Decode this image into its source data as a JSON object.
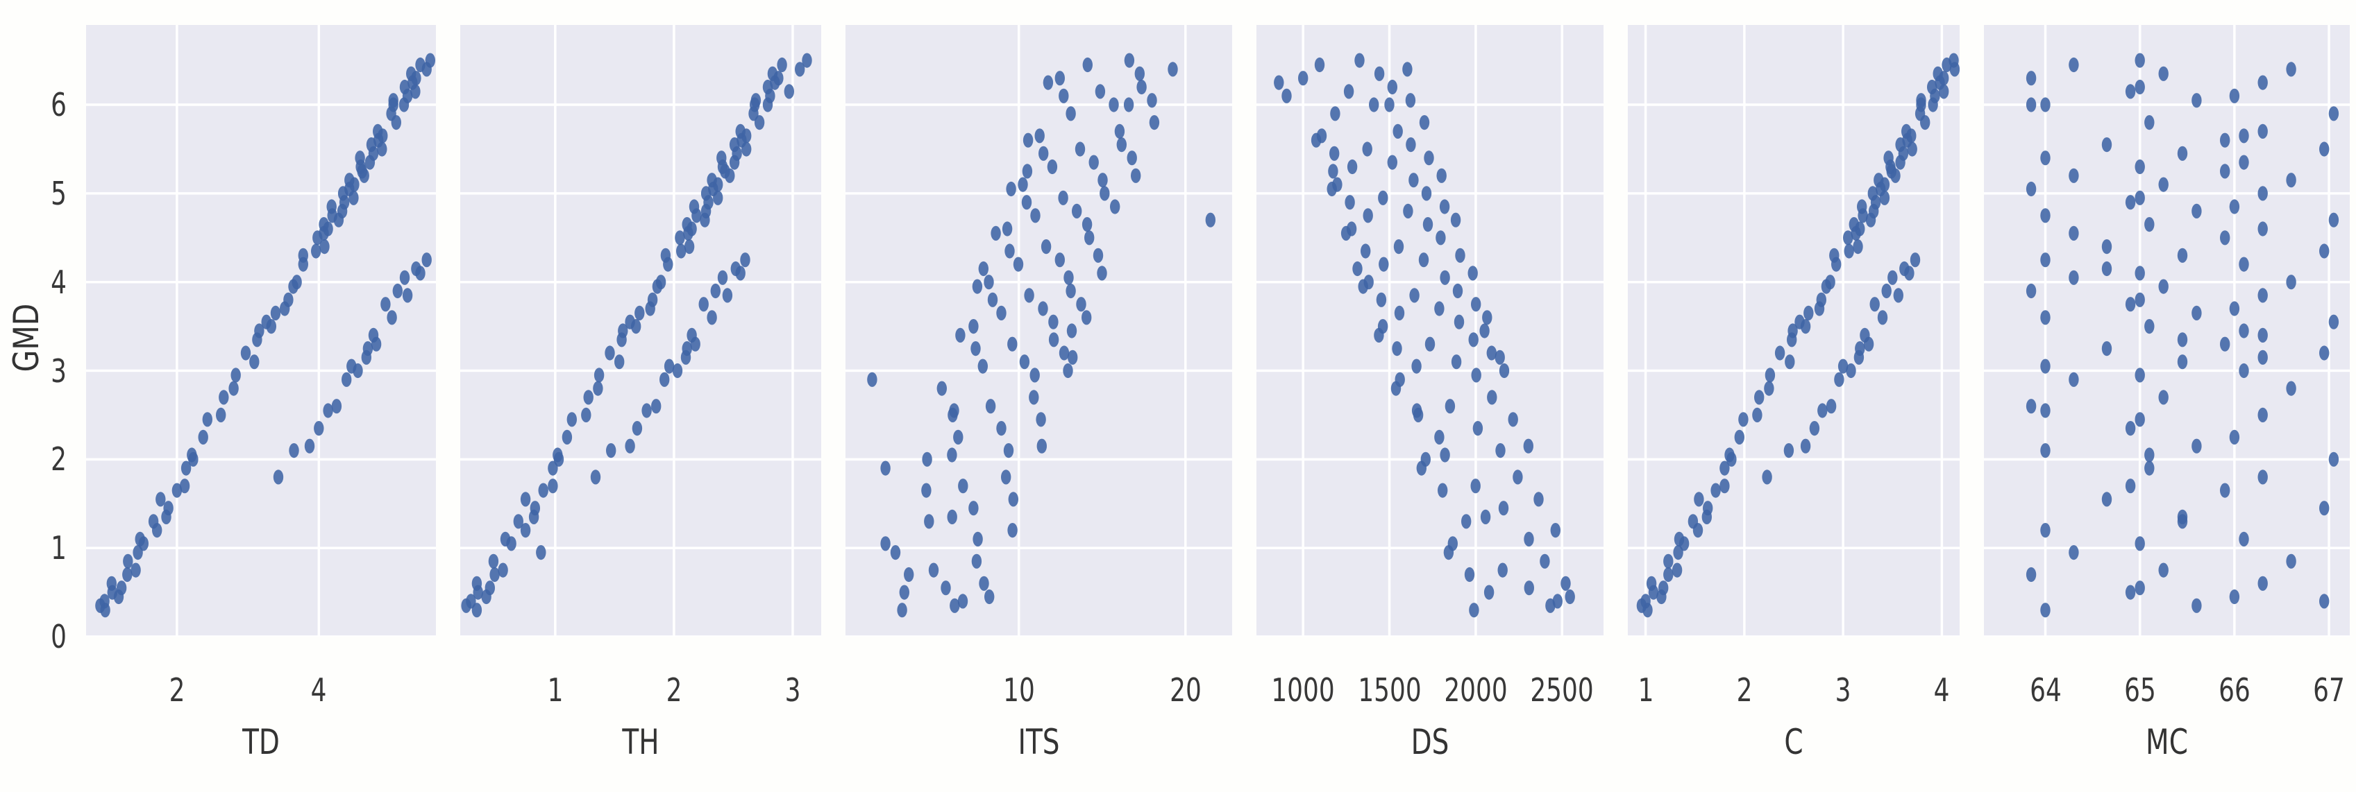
{
  "figure": {
    "background": "#fefefc",
    "panel_background": "#e9e9f2",
    "grid_color": "#ffffff",
    "dot_color": "#3f64a5",
    "text_color": "#383838"
  },
  "chart_data": {
    "type": "scatter",
    "title": "",
    "layout": "1 row x 6 panels, shared y-axis, seaborn darkgrid, no legend",
    "ylabel": "GMD",
    "y_ticks": [
      0,
      1,
      2,
      3,
      4,
      5,
      6
    ],
    "ylim": [
      0,
      6.9
    ],
    "gmd": [
      0.3,
      0.35,
      0.45,
      0.5,
      0.55,
      0.6,
      0.7,
      0.75,
      0.85,
      0.95,
      1.05,
      1.1,
      1.2,
      1.3,
      1.45,
      1.55,
      1.65,
      1.7,
      1.8,
      1.9,
      2.0,
      2.1,
      2.15,
      2.25,
      2.35,
      2.45,
      2.5,
      2.6,
      2.7,
      2.8,
      2.9,
      2.95,
      3.0,
      3.05,
      3.1,
      3.2,
      3.25,
      3.3,
      3.35,
      3.4,
      3.5,
      3.55,
      3.6,
      3.65,
      3.7,
      3.75,
      3.8,
      3.85,
      3.9,
      3.95,
      4.0,
      4.05,
      4.1,
      4.2,
      4.25,
      4.3,
      4.35,
      4.4,
      4.5,
      4.55,
      4.6,
      4.65,
      4.7,
      4.75,
      4.8,
      4.85,
      4.9,
      4.95,
      5.0,
      5.05,
      5.1,
      5.15,
      5.2,
      5.3,
      5.35,
      5.4,
      5.45,
      5.5,
      5.55,
      5.6,
      5.65,
      5.7,
      5.8,
      5.9,
      6.0,
      6.05,
      6.1,
      6.15,
      6.2,
      6.25,
      6.3,
      6.35,
      6.4,
      6.45,
      6.5,
      3.45,
      2.55,
      1.35,
      0.4,
      4.15,
      5.25,
      6.0,
      3.15,
      2.05
    ],
    "panels": [
      {
        "xlabel": "TD",
        "x_ticks": [
          2,
          4
        ],
        "xlim": [
          0.72,
          5.65
        ],
        "x": [
          0.99,
          0.92,
          1.18,
          1.09,
          1.22,
          1.08,
          1.3,
          1.42,
          1.31,
          1.45,
          1.53,
          1.48,
          1.72,
          1.67,
          1.88,
          1.77,
          2.0,
          2.11,
          3.43,
          2.13,
          2.23,
          3.65,
          3.87,
          2.37,
          4.0,
          2.43,
          2.62,
          4.25,
          2.66,
          2.8,
          4.39,
          2.83,
          4.55,
          4.46,
          3.09,
          2.97,
          4.69,
          4.81,
          3.13,
          4.77,
          3.33,
          3.26,
          5.03,
          3.39,
          3.52,
          4.94,
          3.57,
          5.25,
          5.11,
          3.64,
          3.69,
          5.21,
          5.43,
          3.78,
          5.52,
          3.78,
          3.96,
          4.08,
          3.98,
          4.07,
          4.13,
          4.07,
          4.28,
          4.19,
          4.33,
          4.18,
          4.36,
          4.49,
          4.34,
          4.43,
          4.5,
          4.43,
          4.64,
          4.59,
          4.72,
          4.58,
          4.77,
          4.89,
          4.74,
          4.84,
          4.9,
          4.83,
          5.09,
          5.02,
          5.2,
          5.05,
          5.25,
          5.36,
          5.21,
          5.32,
          5.37,
          5.3,
          5.52,
          5.43,
          5.57,
          3.16,
          4.13,
          1.85,
          0.98,
          5.37,
          4.61,
          5.05,
          4.67,
          2.21
        ]
      },
      {
        "xlabel": "TH",
        "x_ticks": [
          1,
          2,
          3
        ],
        "xlim": [
          0.2,
          3.24
        ],
        "x": [
          0.34,
          0.25,
          0.42,
          0.35,
          0.45,
          0.34,
          0.49,
          0.56,
          0.48,
          0.88,
          0.63,
          0.58,
          0.75,
          0.69,
          0.83,
          0.75,
          0.9,
          0.98,
          1.34,
          0.98,
          1.03,
          1.47,
          1.63,
          1.1,
          1.69,
          1.14,
          1.26,
          1.85,
          1.28,
          1.36,
          1.92,
          1.37,
          2.03,
          1.96,
          1.54,
          1.46,
          2.11,
          2.18,
          1.56,
          2.15,
          1.68,
          1.63,
          2.32,
          1.71,
          1.8,
          2.25,
          1.82,
          2.45,
          2.35,
          1.86,
          1.89,
          2.41,
          2.56,
          1.95,
          2.6,
          1.93,
          2.06,
          2.13,
          2.05,
          2.12,
          2.15,
          2.11,
          2.26,
          2.19,
          2.27,
          2.17,
          2.29,
          2.37,
          2.27,
          2.33,
          2.37,
          2.32,
          2.47,
          2.41,
          2.51,
          2.4,
          2.53,
          2.61,
          2.51,
          2.57,
          2.61,
          2.56,
          2.72,
          2.67,
          2.79,
          2.69,
          2.81,
          2.97,
          2.79,
          2.85,
          2.88,
          2.83,
          3.06,
          2.91,
          3.12,
          1.57,
          1.77,
          0.82,
          0.29,
          2.52,
          2.43,
          2.68,
          2.1,
          1.02
        ]
      },
      {
        "xlabel": "ITS",
        "x_ticks": [
          10,
          20
        ],
        "xlim": [
          -0.4,
          22.8
        ],
        "x": [
          3.0,
          6.15,
          8.23,
          3.13,
          5.62,
          7.91,
          3.4,
          4.89,
          7.47,
          2.6,
          2.0,
          7.54,
          9.62,
          4.61,
          7.28,
          9.67,
          4.45,
          6.65,
          9.23,
          2.0,
          4.5,
          9.39,
          11.38,
          6.36,
          8.95,
          11.33,
          6.03,
          8.31,
          10.9,
          5.38,
          1.2,
          10.96,
          12.95,
          7.84,
          10.34,
          12.72,
          7.41,
          9.61,
          12.1,
          6.49,
          7.28,
          12.07,
          14.06,
          8.95,
          11.45,
          13.74,
          8.43,
          10.62,
          13.12,
          7.51,
          8.2,
          12.99,
          14.99,
          9.97,
          12.46,
          14.76,
          9.45,
          11.64,
          14.23,
          8.62,
          9.31,
          14.1,
          21.5,
          10.99,
          13.48,
          15.77,
          10.47,
          12.66,
          15.15,
          9.54,
          10.24,
          15.03,
          17.02,
          12.01,
          14.5,
          16.79,
          11.48,
          13.68,
          16.17,
          10.56,
          11.25,
          16.05,
          18.13,
          13.12,
          15.7,
          17.99,
          12.69,
          14.88,
          17.37,
          11.76,
          12.46,
          17.25,
          19.24,
          14.13,
          16.63,
          13.18,
          6.12,
          6.0,
          6.64,
          7.88,
          10.51,
          16.6,
          13.23,
          5.99
        ]
      },
      {
        "xlabel": "DS",
        "x_ticks": [
          1000,
          1500,
          2000,
          2500
        ],
        "xlim": [
          730,
          2740
        ],
        "x": [
          1990,
          2432,
          2546,
          2077,
          2309,
          2521,
          1964,
          2156,
          2400,
          1843,
          1867,
          2308,
          2462,
          1945,
          2161,
          2364,
          1808,
          1999,
          2243,
          1686,
          1710,
          2143,
          2305,
          1789,
          2012,
          2216,
          1667,
          1851,
          2094,
          1538,
          1561,
          2003,
          2165,
          1657,
          1888,
          2092,
          1544,
          1735,
          1987,
          1439,
          1462,
          1904,
          2066,
          1558,
          1789,
          2001,
          1453,
          1645,
          1896,
          1348,
          1380,
          1822,
          1983,
          1467,
          1699,
          1910,
          1362,
          1554,
          1797,
          1249,
          1281,
          1723,
          1884,
          1376,
          1608,
          1820,
          1271,
          1463,
          1715,
          1167,
          1198,
          1640,
          1802,
          1285,
          1517,
          1729,
          1181,
          1372,
          1624,
          1076,
          1108,
          1549,
          1703,
          1186,
          1410,
          1622,
          905,
          1265,
          1517,
          860,
          1000,
          1442,
          1604,
          1096,
          1327,
          2051,
          1659,
          2057,
          2474,
          1315,
          1174,
          1500,
          2140,
          1822
        ]
      },
      {
        "xlabel": "C",
        "x_ticks": [
          1,
          2,
          3,
          4
        ],
        "xlim": [
          0.82,
          4.18
        ],
        "x": [
          1.02,
          0.96,
          1.16,
          1.08,
          1.18,
          1.06,
          1.23,
          1.32,
          1.23,
          1.33,
          1.39,
          1.34,
          1.53,
          1.48,
          1.63,
          1.54,
          1.71,
          1.8,
          2.23,
          1.8,
          1.87,
          2.45,
          2.62,
          1.95,
          2.71,
          1.99,
          2.13,
          2.88,
          2.15,
          2.25,
          2.96,
          2.26,
          3.08,
          3.0,
          2.46,
          2.36,
          3.17,
          3.26,
          2.48,
          3.22,
          2.62,
          2.56,
          3.4,
          2.65,
          2.76,
          3.32,
          2.78,
          3.56,
          3.44,
          2.83,
          2.87,
          3.5,
          3.67,
          2.93,
          3.73,
          2.91,
          3.06,
          3.15,
          3.05,
          3.13,
          3.17,
          3.11,
          3.28,
          3.2,
          3.31,
          3.19,
          3.33,
          3.42,
          3.3,
          3.38,
          3.42,
          3.36,
          3.53,
          3.48,
          3.58,
          3.46,
          3.61,
          3.7,
          3.58,
          3.65,
          3.69,
          3.64,
          3.83,
          3.78,
          3.91,
          3.79,
          3.93,
          4.02,
          3.9,
          3.98,
          4.02,
          3.96,
          4.13,
          4.05,
          4.12,
          2.49,
          2.79,
          1.62,
          1.0,
          3.62,
          3.49,
          3.79,
          3.16,
          1.85
        ]
      },
      {
        "xlabel": "MC",
        "x_ticks": [
          64,
          65,
          66,
          67
        ],
        "xlim": [
          63.35,
          67.22
        ],
        "x": [
          64.0,
          65.6,
          66.0,
          64.9,
          65.0,
          66.3,
          63.85,
          65.25,
          66.6,
          64.3,
          65.0,
          66.1,
          64.0,
          65.45,
          66.95,
          64.65,
          65.9,
          64.9,
          66.3,
          65.1,
          67.05,
          64.0,
          65.6,
          66.0,
          64.9,
          65.0,
          66.3,
          63.85,
          65.25,
          66.6,
          64.3,
          65.0,
          66.1,
          64.0,
          65.45,
          66.95,
          64.65,
          65.9,
          65.45,
          66.3,
          65.1,
          67.05,
          64.0,
          65.6,
          66.0,
          64.9,
          65.0,
          66.3,
          63.85,
          65.25,
          66.6,
          64.3,
          65.0,
          66.1,
          64.0,
          65.45,
          66.95,
          64.65,
          65.9,
          64.3,
          66.3,
          65.1,
          67.05,
          64.0,
          65.6,
          66.0,
          64.9,
          65.0,
          66.3,
          63.85,
          65.25,
          66.6,
          64.3,
          65.0,
          66.1,
          64.0,
          65.45,
          66.95,
          64.65,
          65.9,
          66.1,
          66.3,
          65.1,
          67.05,
          64.0,
          65.6,
          66.0,
          64.9,
          65.0,
          66.3,
          63.85,
          65.25,
          66.6,
          64.3,
          65.0,
          66.1,
          64.0,
          65.45,
          66.95,
          64.65,
          65.9,
          63.85,
          66.3,
          65.1
        ]
      }
    ]
  }
}
